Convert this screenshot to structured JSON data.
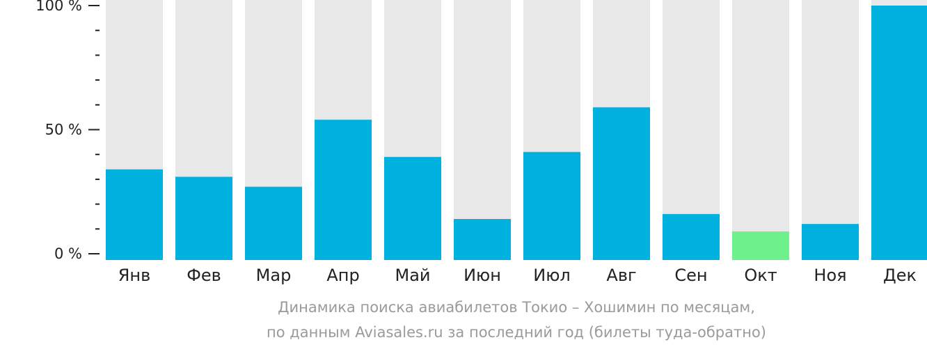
{
  "chart_data": {
    "type": "bar",
    "categories": [
      "Янв",
      "Фев",
      "Мар",
      "Апр",
      "Май",
      "Июн",
      "Июл",
      "Авг",
      "Сен",
      "Окт",
      "Ноя",
      "Дек"
    ],
    "values": [
      34,
      31,
      27,
      54,
      39,
      14,
      41,
      59,
      16,
      9,
      12,
      100
    ],
    "max": 100,
    "ylim": [
      0,
      100
    ],
    "yticks": [
      "0 %",
      "50 %",
      "100 %"
    ],
    "yticks_values": [
      0,
      50,
      100
    ],
    "minor_tick_step": 10,
    "highlight_index": 9,
    "colors": {
      "bar": "#00b0de",
      "highlight": "#6ef18b",
      "track": "#e8e8e8",
      "axis": "#222222"
    },
    "caption_line1": "Динамика поиска авиабилетов Токио – Хошимин по месяцам,",
    "caption_line2": "по данным Aviasales.ru за последний год (билеты туда-обратно)"
  }
}
